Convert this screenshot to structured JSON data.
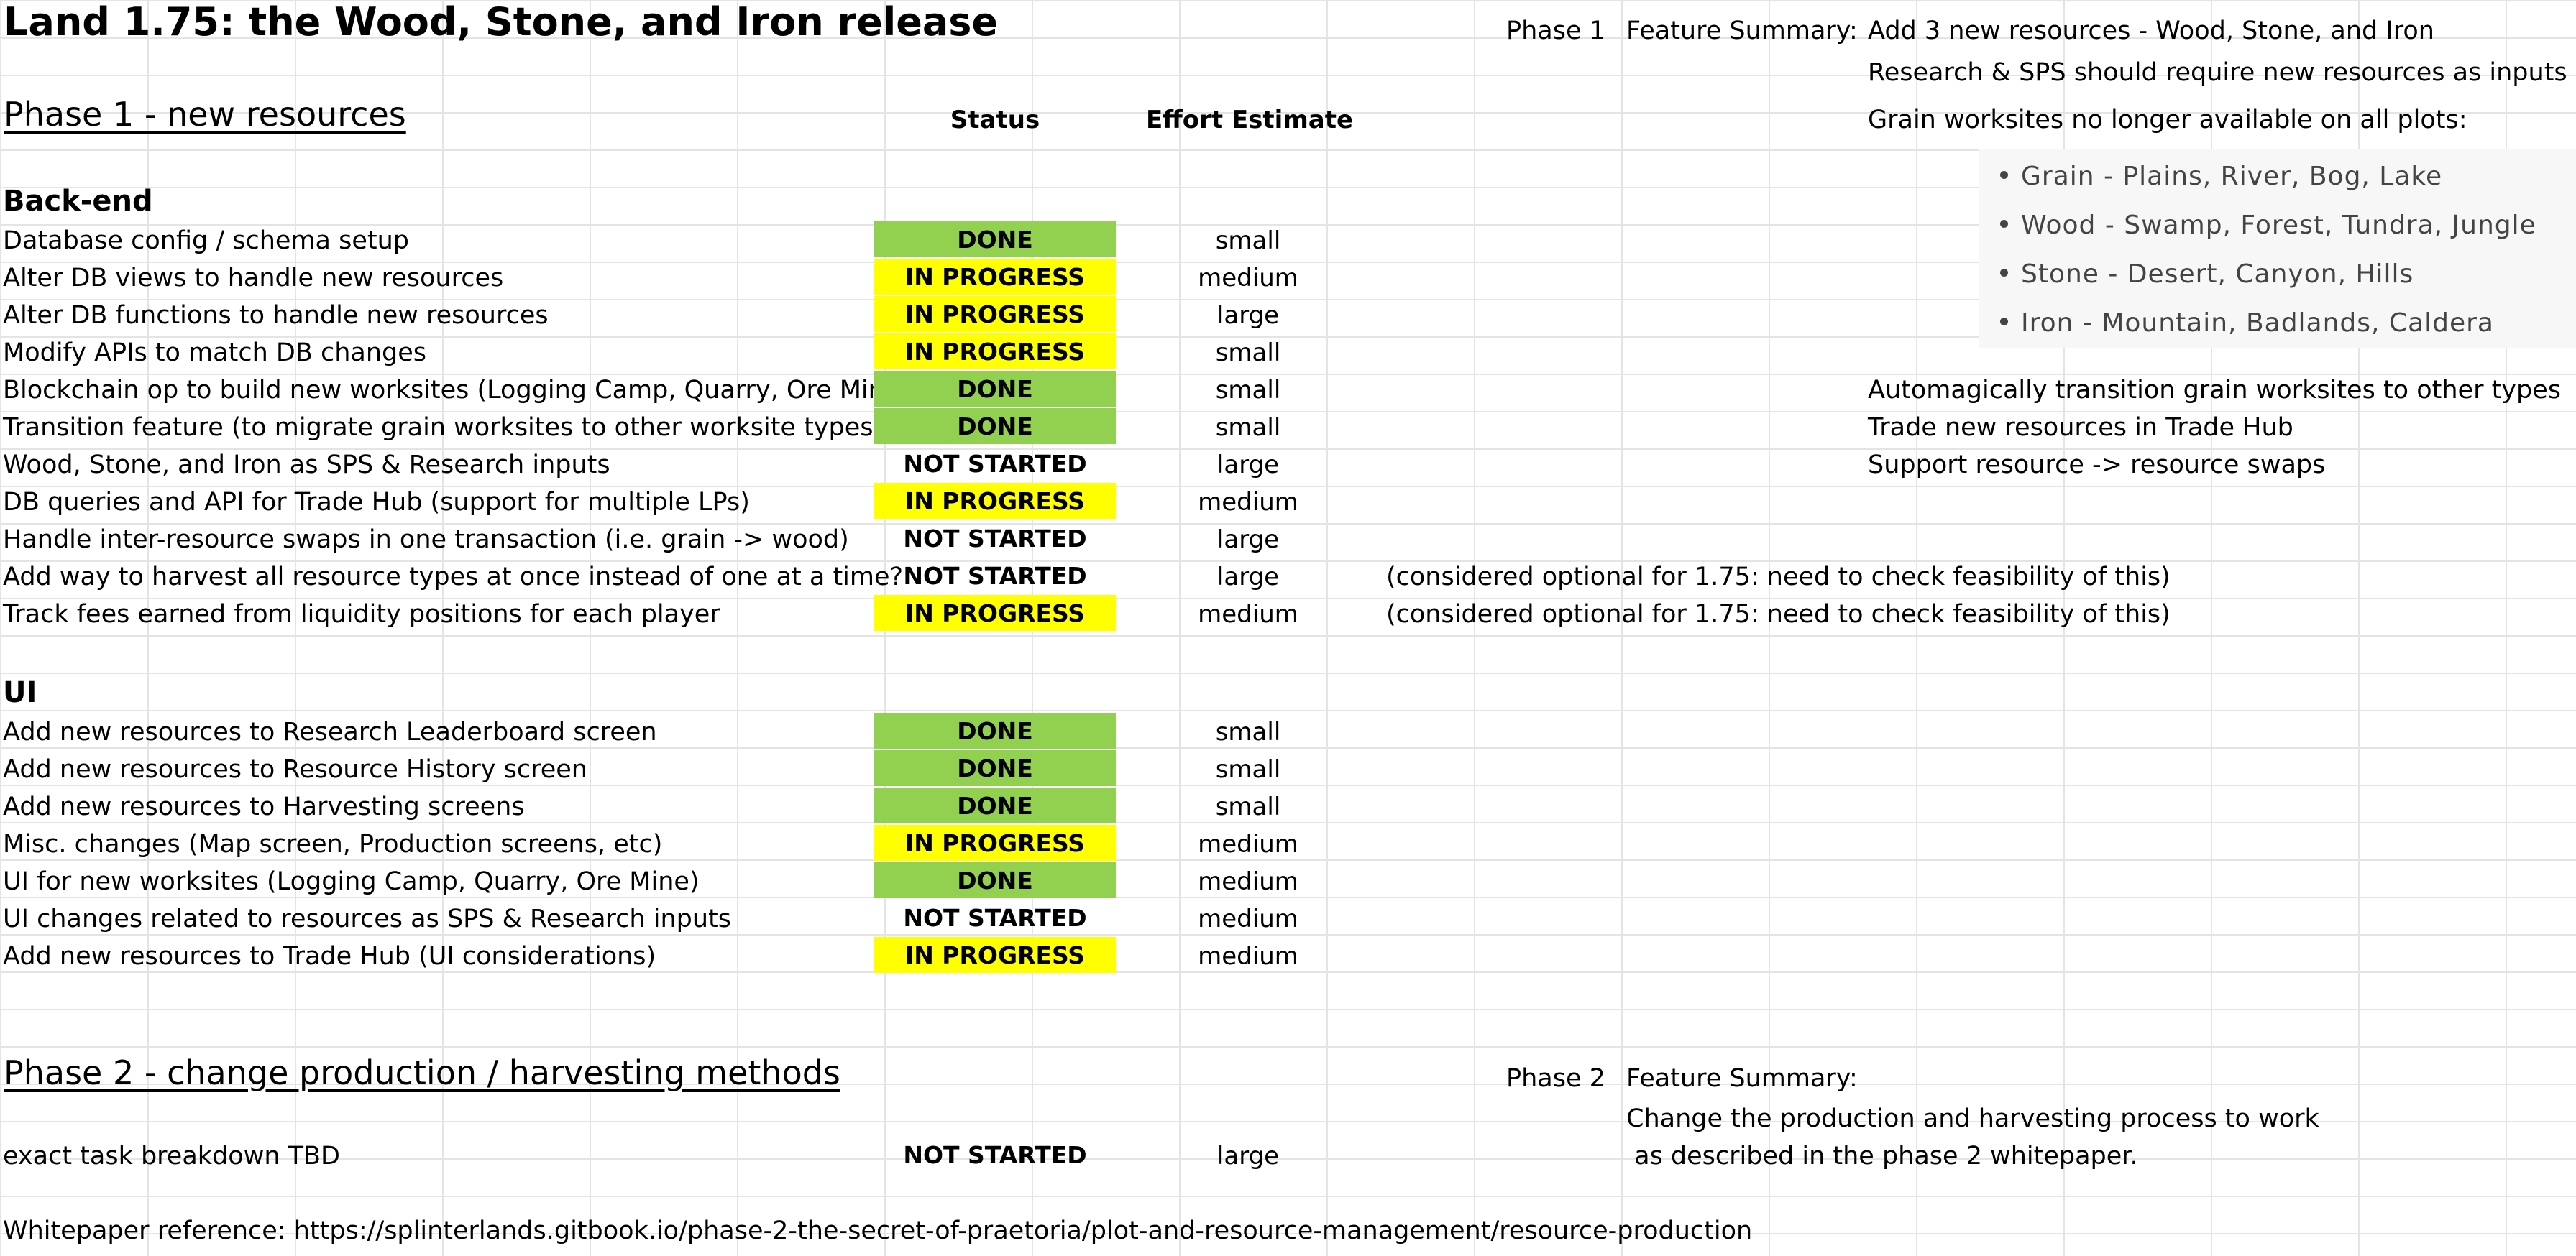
{
  "title": "Land 1.75:  the Wood, Stone, and Iron release",
  "phase1": {
    "heading": "Phase 1 - new resources",
    "col_status": "Status",
    "col_effort": "Effort Estimate",
    "label": "Phase 1",
    "summary_label": "Feature Summary:",
    "summary_lines": [
      "Add 3 new resources - Wood, Stone, and Iron",
      "Research & SPS should require new resources as inputs",
      "Grain worksites no longer available on all plots:"
    ],
    "bullets": [
      "Grain - Plains, River, Bog, Lake",
      "Wood - Swamp, Forest, Tundra, Jungle",
      "Stone - Desert, Canyon, Hills",
      "Iron - Mountain, Badlands, Caldera"
    ],
    "summary_more": [
      "Automagically transition grain worksites to other types",
      "Trade new resources in Trade Hub",
      "Support resource -> resource swaps"
    ],
    "backend_heading": "Back-end",
    "backend": [
      {
        "task": "Database config / schema setup",
        "status": "DONE",
        "effort": "small"
      },
      {
        "task": "Alter DB views to handle new resources",
        "status": "IN PROGRESS",
        "effort": "medium"
      },
      {
        "task": "Alter DB functions to handle new resources",
        "status": "IN PROGRESS",
        "effort": "large"
      },
      {
        "task": "Modify APIs to match DB changes",
        "status": "IN PROGRESS",
        "effort": "small"
      },
      {
        "task": "Blockchain op to build new worksites (Logging Camp, Quarry, Ore Mine)",
        "status": "DONE",
        "effort": "small"
      },
      {
        "task": "Transition feature (to migrate grain worksites to other worksite types)",
        "status": "DONE",
        "effort": "small"
      },
      {
        "task": "Wood, Stone, and Iron as SPS & Research inputs",
        "status": "NOT STARTED",
        "effort": "large"
      },
      {
        "task": "DB queries and API for Trade Hub (support for multiple LPs)",
        "status": "IN PROGRESS",
        "effort": "medium"
      },
      {
        "task": "Handle inter-resource swaps in one transaction (i.e. grain -> wood)",
        "status": "NOT STARTED",
        "effort": "large"
      },
      {
        "task": "Add way to harvest all resource types at once instead of one at a time?",
        "status": "NOT STARTED",
        "effort": "large"
      },
      {
        "task": "Track fees earned from liquidity positions for each player",
        "status": "IN PROGRESS",
        "effort": "medium"
      }
    ],
    "optional_note": "(considered optional for 1.75:  need to check feasibility of this)",
    "ui_heading": "UI",
    "ui": [
      {
        "task": "Add new resources to Research Leaderboard screen",
        "status": "DONE",
        "effort": "small"
      },
      {
        "task": "Add new resources to Resource History screen",
        "status": "DONE",
        "effort": "small"
      },
      {
        "task": "Add new resources to Harvesting screens",
        "status": "DONE",
        "effort": "small"
      },
      {
        "task": "Misc. changes (Map screen, Production screens, etc)",
        "status": "IN PROGRESS",
        "effort": "medium"
      },
      {
        "task": "UI for new worksites (Logging Camp, Quarry, Ore Mine)",
        "status": "DONE",
        "effort": "medium"
      },
      {
        "task": "UI changes related to resources as SPS & Research inputs",
        "status": "NOT STARTED",
        "effort": "medium"
      },
      {
        "task": "Add new resources to Trade Hub (UI considerations)",
        "status": "IN PROGRESS",
        "effort": "medium"
      }
    ]
  },
  "phase2": {
    "heading": "Phase 2 - change production / harvesting methods",
    "label": "Phase 2",
    "summary_label": "Feature Summary:",
    "summary_lines": [
      "Change the production and harvesting process to work",
      " as described in the phase 2 whitepaper."
    ],
    "task": {
      "task": "exact task breakdown TBD",
      "status": "NOT STARTED",
      "effort": "large"
    }
  },
  "whitepaper": "Whitepaper reference:  https://splinterlands.gitbook.io/phase-2-the-secret-of-praetoria/plot-and-resource-management/resource-production",
  "colors": {
    "done": "#92d050",
    "in_progress": "#ffff00",
    "grid": "#e4e4e4"
  }
}
